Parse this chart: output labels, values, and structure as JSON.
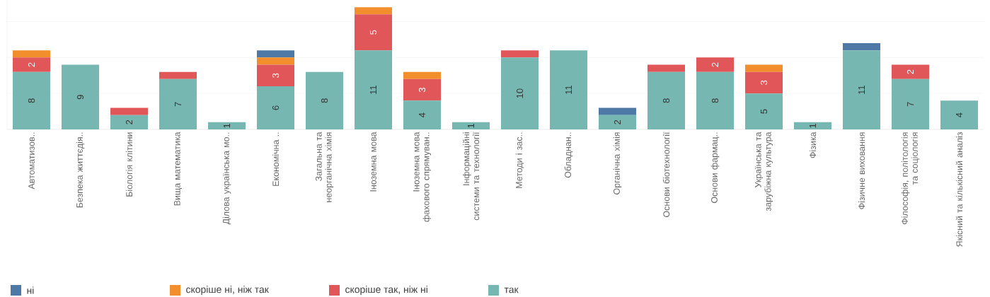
{
  "chart_data": {
    "type": "bar",
    "stacked": true,
    "categories": [
      "Автоматизов..",
      "Безпека життєдія..",
      "Біологія клітини",
      "Вища математика",
      "Ділова українська мо..",
      "Економічна ..",
      "Загальна та неорганічна хімія",
      "Іноземна мова",
      "Іноземна мова фахового спрямуван..",
      "Інформаційні системи та технології",
      "Методи і зас..",
      "Обладнан..",
      "Органічна хімія",
      "Основи біотехнології",
      "Основи фармац..",
      "Українська та зарубіжна культура",
      "Фізика",
      "Фізичне виховання",
      "Філософія, політологія та соціологія",
      "Якісний та кількісний аналіз"
    ],
    "series": [
      {
        "name": "так",
        "color": "#76b7b2",
        "values": [
          8,
          9,
          2,
          7,
          1,
          6,
          8,
          11,
          4,
          1,
          10,
          11,
          2,
          8,
          8,
          5,
          1,
          11,
          7,
          4
        ],
        "value_labels": [
          "8",
          "9",
          "2",
          "7",
          "1",
          "6",
          "8",
          "11",
          "4",
          "1",
          "10",
          "11",
          "2",
          "8",
          "8",
          "5",
          "1",
          "11",
          "7",
          "4"
        ]
      },
      {
        "name": "скоріше так, ніж ні",
        "color": "#e15759",
        "values": [
          2,
          0,
          1,
          1,
          0,
          3,
          0,
          5,
          3,
          0,
          1,
          0,
          0,
          1,
          2,
          3,
          0,
          0,
          2,
          0
        ],
        "value_labels": [
          "2",
          null,
          null,
          null,
          null,
          "3",
          null,
          "5",
          "3",
          null,
          null,
          null,
          null,
          null,
          "2",
          "3",
          null,
          null,
          "2",
          null
        ]
      },
      {
        "name": "скоріше ні, ніж так",
        "color": "#f28e2b",
        "values": [
          1,
          0,
          0,
          0,
          0,
          1,
          0,
          1,
          1,
          0,
          0,
          0,
          0,
          0,
          0,
          1,
          0,
          0,
          0,
          0
        ]
      },
      {
        "name": "ні",
        "color": "#4e79a7",
        "values": [
          0,
          0,
          0,
          0,
          0,
          1,
          0,
          0,
          0,
          0,
          0,
          0,
          1,
          0,
          0,
          0,
          0,
          1,
          0,
          0
        ]
      }
    ],
    "ylim": [
      0,
      18
    ],
    "grid": "y",
    "tick_labels": "x",
    "legend": "bottom"
  }
}
